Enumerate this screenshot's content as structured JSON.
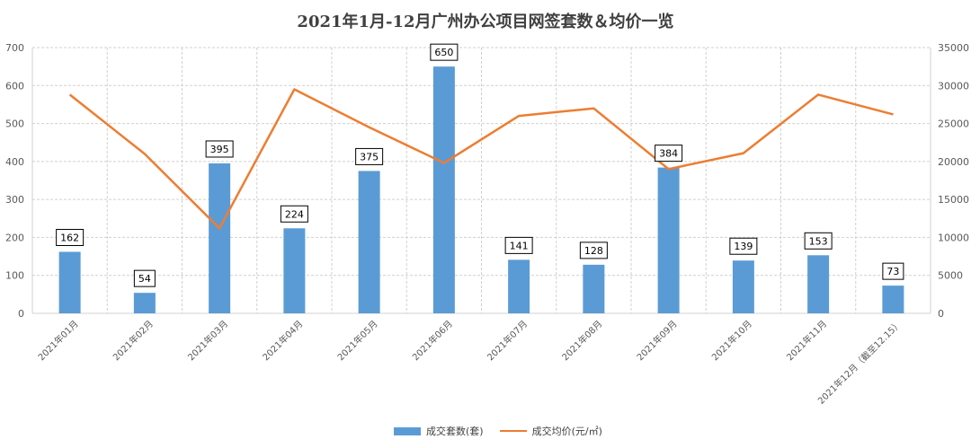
{
  "chart_data": {
    "type": "bar",
    "title": "2021年1月-12月广州办公项目网签套数＆均价一览",
    "categories": [
      "2021年01月",
      "2021年02月",
      "2021年03月",
      "2021年04月",
      "2021年05月",
      "2021年06月",
      "2021年07月",
      "2021年08月",
      "2021年09月",
      "2021年10月",
      "2021年11月",
      "2021年12月（截至12.15）"
    ],
    "series": [
      {
        "name": "成交套数(套)",
        "type": "bar",
        "axis": "left",
        "values": [
          162,
          54,
          395,
          224,
          375,
          650,
          141,
          128,
          384,
          139,
          153,
          73
        ]
      },
      {
        "name": "成交均价(元/㎡)",
        "type": "line",
        "axis": "right",
        "values": [
          28800,
          21000,
          11200,
          29500,
          24500,
          19800,
          26000,
          27000,
          19000,
          21100,
          28800,
          26200
        ]
      }
    ],
    "ylim_left": [
      0,
      700
    ],
    "ylim_right": [
      0,
      35000
    ],
    "yticks_left": [
      0,
      100,
      200,
      300,
      400,
      500,
      600,
      700
    ],
    "yticks_right": [
      0,
      5000,
      10000,
      15000,
      20000,
      25000,
      30000,
      35000
    ],
    "grid": true,
    "legend_position": "bottom",
    "bar_color": "#5B9BD5",
    "line_color": "#ED7D31",
    "data_labels": true
  }
}
